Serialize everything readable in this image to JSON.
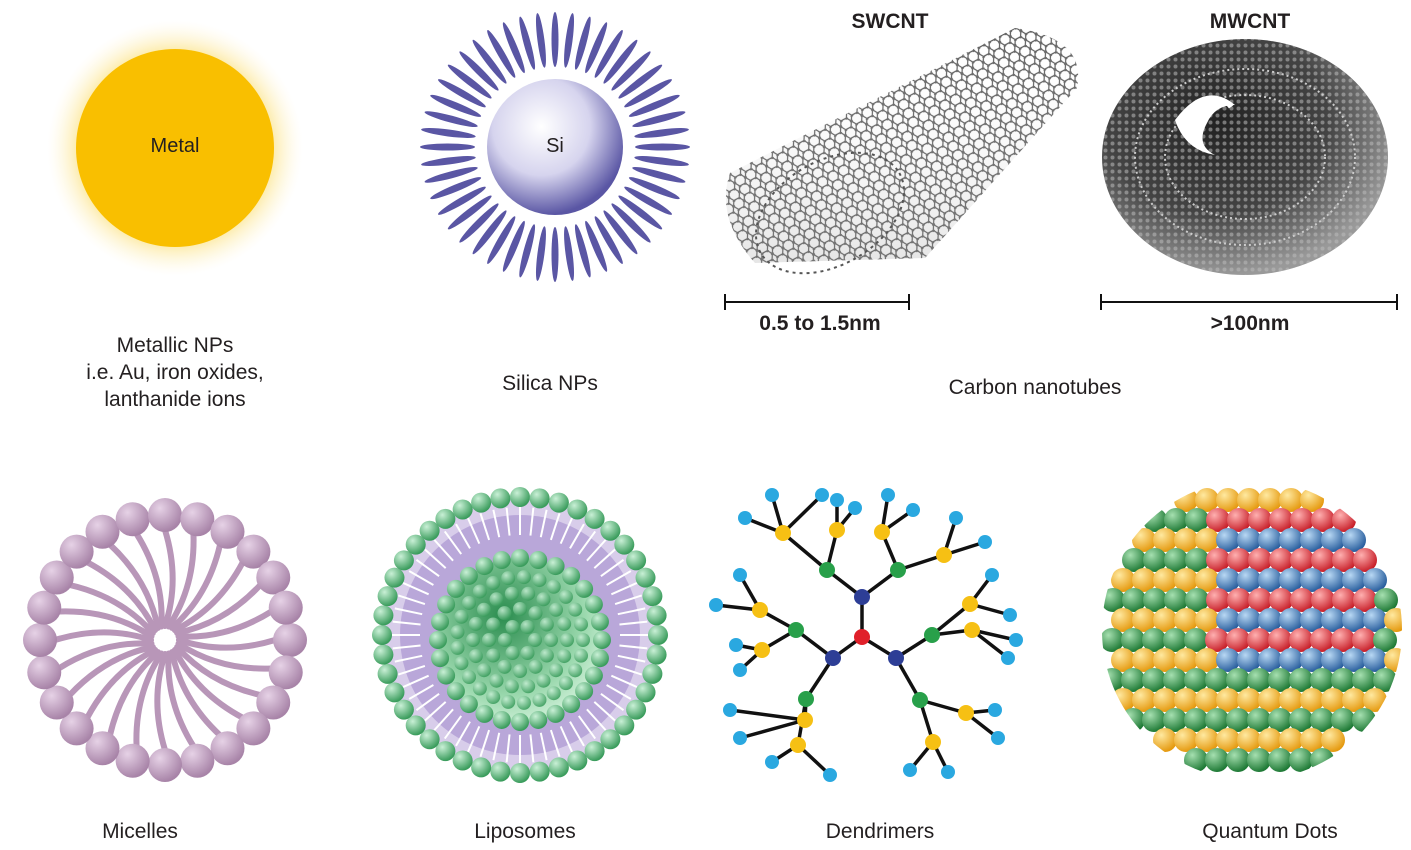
{
  "metallic": {
    "core_label": "Metal",
    "caption": [
      "Metallic NPs",
      "i.e. Au, iron oxides,",
      "lanthanide ions"
    ]
  },
  "silica": {
    "core_label": "Si",
    "caption": "Silica NPs"
  },
  "cnt": {
    "swcnt_title": "SWCNT",
    "mwcnt_title": "MWCNT",
    "swcnt_scale": "0.5 to 1.5nm",
    "mwcnt_scale": ">100nm",
    "caption": "Carbon nanotubes"
  },
  "micelles": {
    "caption": "Micelles"
  },
  "liposomes": {
    "caption": "Liposomes"
  },
  "dendrimers": {
    "caption": "Dendrimers"
  },
  "qdots": {
    "caption": "Quantum Dots"
  },
  "colors": {
    "gold": "#f9bf00",
    "silica_spike": "#5a56a4",
    "micelle": "#b896b8",
    "lipid_green": "#6cc48a",
    "dend_red": "#e0202a",
    "dend_blue": "#2d3e96",
    "dend_green": "#28a04a",
    "dend_yellow": "#f6c014",
    "dend_cyan": "#2aa8e0",
    "qd_yellow": "#f5b82a",
    "qd_green": "#2f8a45",
    "qd_blue": "#3a78b8"
  }
}
